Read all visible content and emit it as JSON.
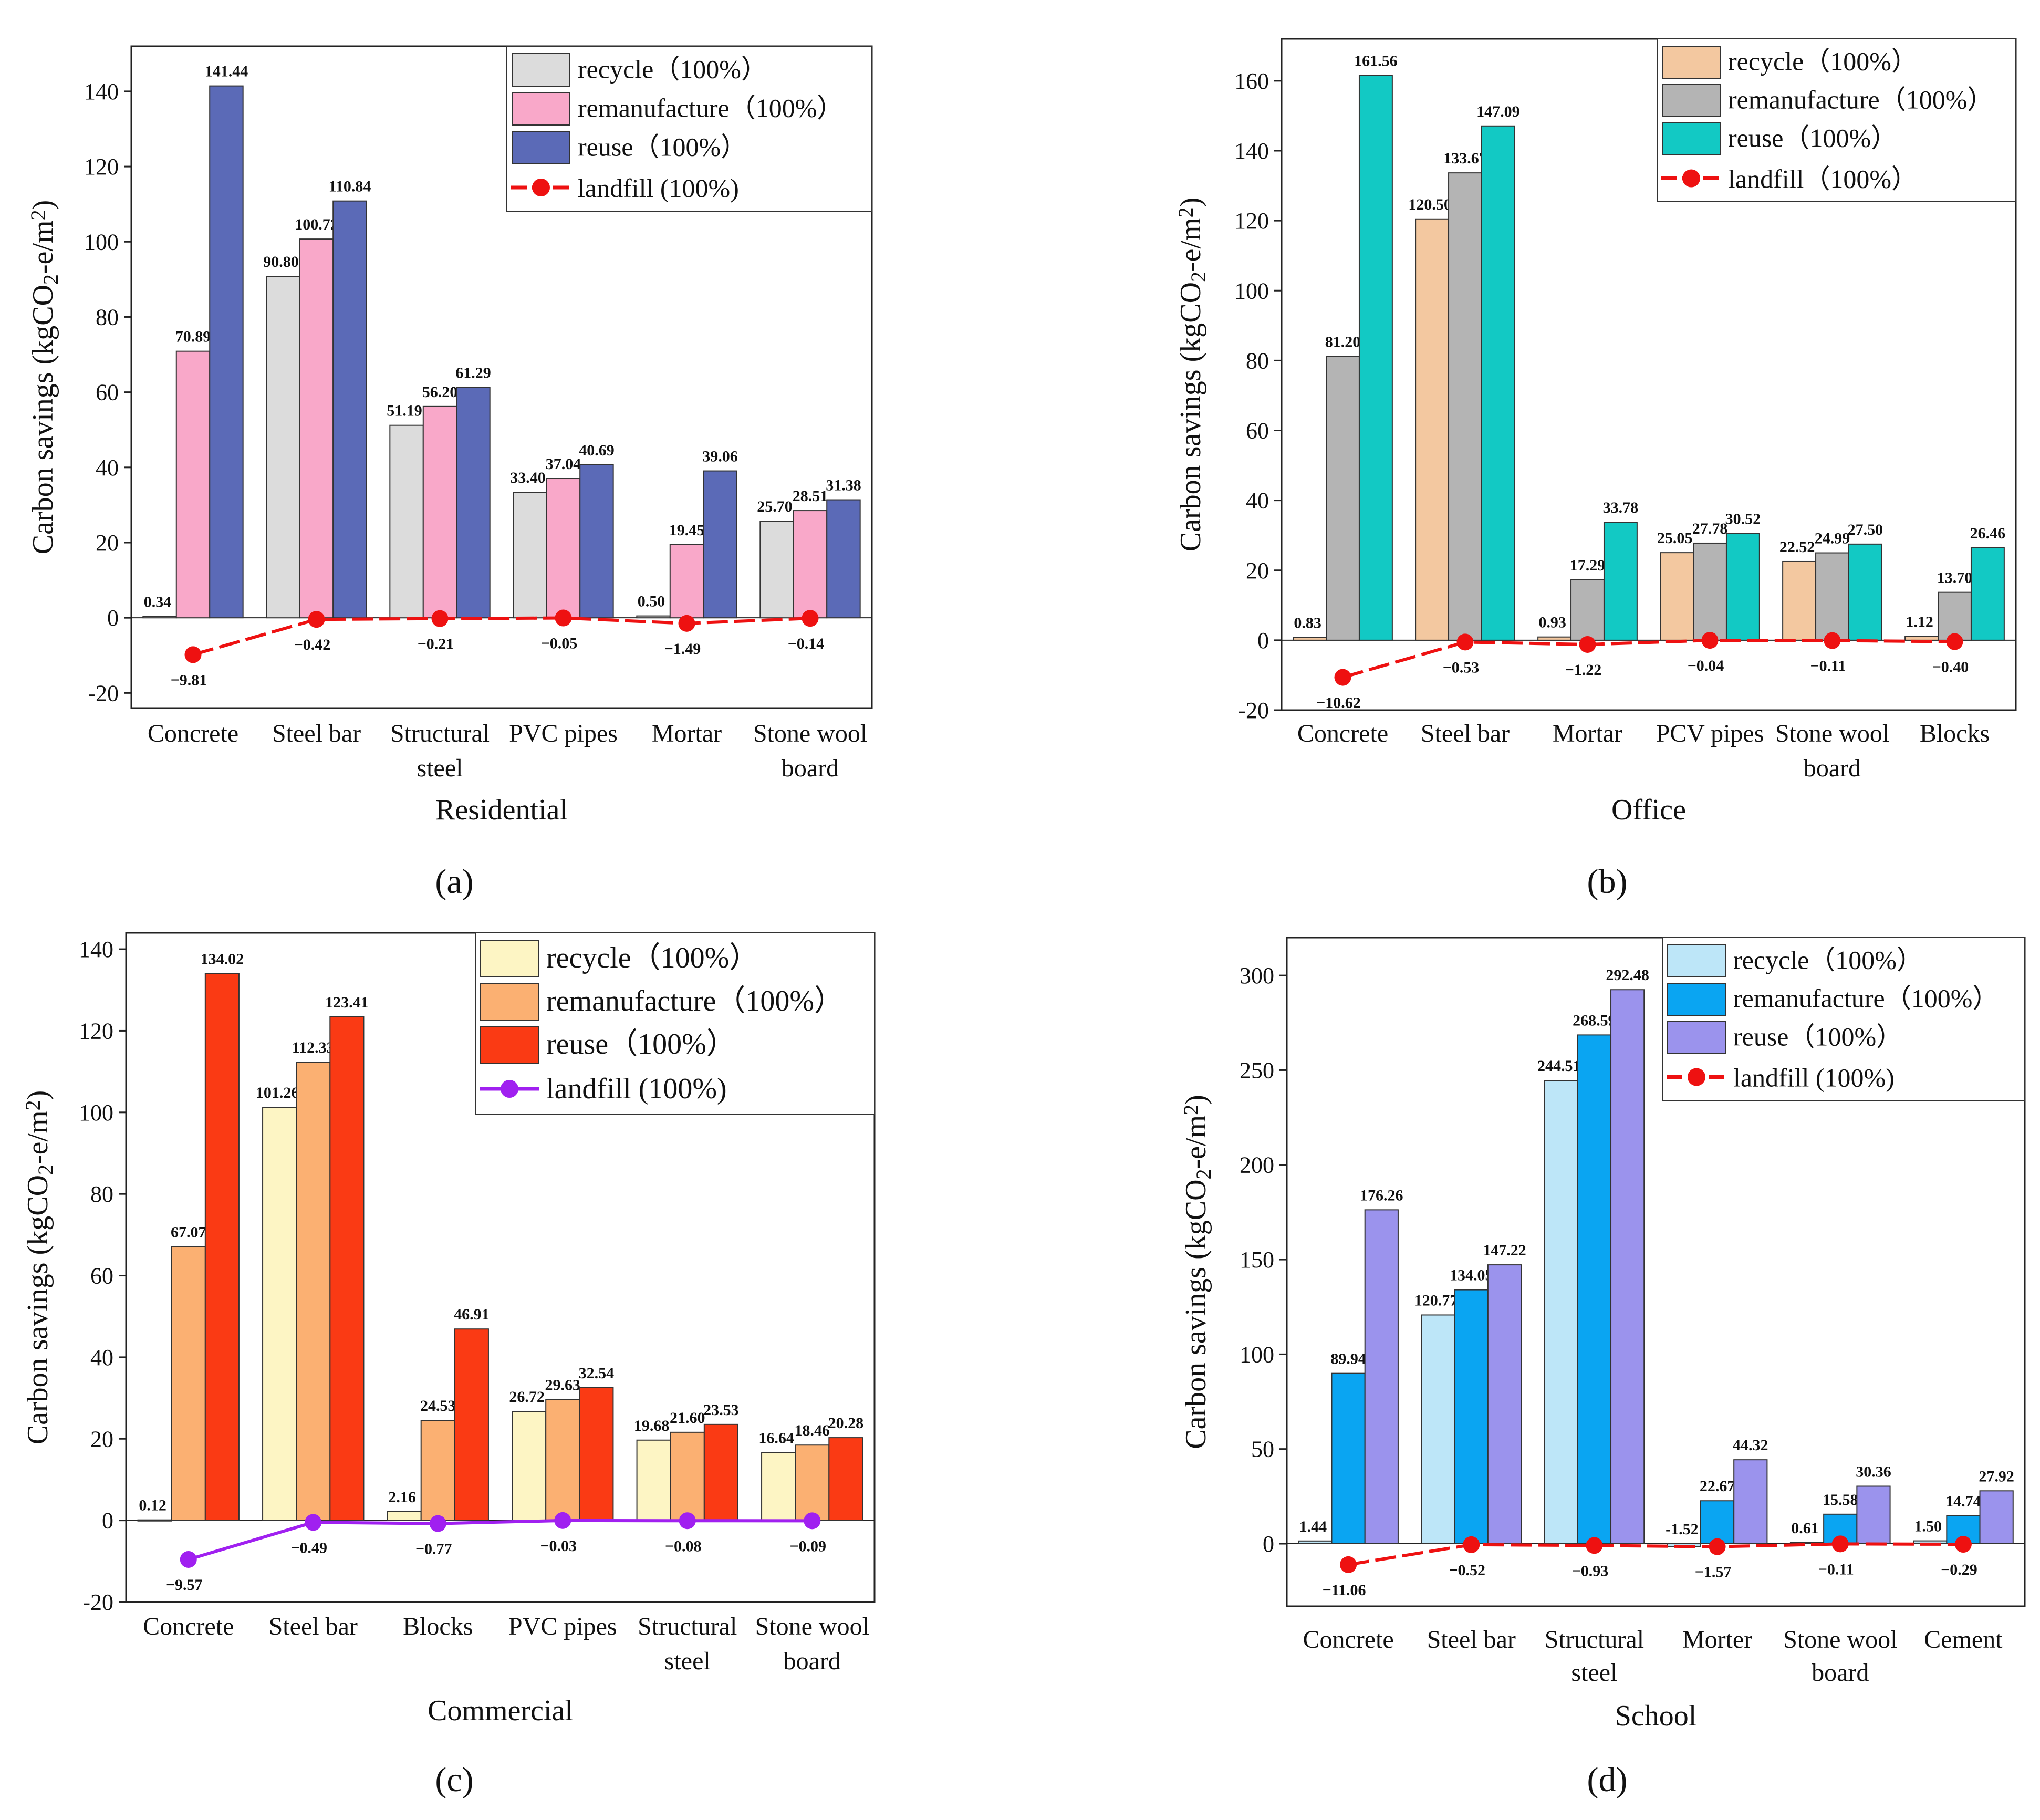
{
  "ylabel_prefix": "Carbon savings  (kgCO",
  "ylabel_sub2": "2",
  "ylabel_mid": "-e/m",
  "ylabel_sup2": "2",
  "ylabel_suffix": ")",
  "chart_data": [
    {
      "type": "bar",
      "panel_label": "(a)",
      "title": "",
      "xlabel": "Residential",
      "ylabel": "Carbon savings (kgCO2-e/m2)",
      "ylim": [
        -24,
        152
      ],
      "yticks": [
        -20,
        0,
        20,
        40,
        60,
        80,
        100,
        120,
        140
      ],
      "categories": [
        [
          "Concrete"
        ],
        [
          "Steel bar"
        ],
        [
          "Structural",
          "steel"
        ],
        [
          "PVC pipes"
        ],
        [
          "Mortar"
        ],
        [
          "Stone wool",
          "board"
        ]
      ],
      "series": [
        {
          "name": "recycle（100%）",
          "color": "#dcdcdc",
          "values": [
            0.34,
            90.8,
            51.19,
            33.4,
            0.5,
            25.7
          ],
          "labels": [
            "0.34",
            "90.80",
            "51.19",
            "33.40",
            "0.50",
            "25.70"
          ]
        },
        {
          "name": "remanufacture（100%）",
          "color": "#f9a8c9",
          "values": [
            70.89,
            100.72,
            56.2,
            37.04,
            19.45,
            28.51
          ],
          "labels": [
            "70.89",
            "100.72",
            "56.20",
            "37.04",
            "19.45",
            "28.51"
          ]
        },
        {
          "name": "reuse（100%）",
          "color": "#5b6ab7",
          "values": [
            141.44,
            110.84,
            61.29,
            40.69,
            39.06,
            31.38
          ],
          "labels": [
            "141.44",
            "110.84",
            "61.29",
            "40.69",
            "39.06",
            "31.38"
          ]
        }
      ],
      "line": {
        "name": "landfill (100%)",
        "color": "#ee1111",
        "dash": true,
        "values": [
          -9.81,
          -0.42,
          -0.21,
          -0.05,
          -1.49,
          -0.14
        ],
        "labels": [
          "−9.81",
          "−0.42",
          "−0.21",
          "−0.05",
          "−1.49",
          "−0.14"
        ]
      },
      "legend": "top-right"
    },
    {
      "type": "bar",
      "panel_label": "(b)",
      "title": "",
      "xlabel": "Office",
      "ylabel": "Carbon savings (kgCO2-e/m2)",
      "ylim": [
        -20,
        172
      ],
      "yticks": [
        -20,
        0,
        20,
        40,
        60,
        80,
        100,
        120,
        140,
        160
      ],
      "categories": [
        [
          "Concrete"
        ],
        [
          "Steel bar"
        ],
        [
          "Mortar"
        ],
        [
          "PCV pipes"
        ],
        [
          "Stone wool",
          "board"
        ],
        [
          "Blocks"
        ]
      ],
      "series": [
        {
          "name": "recycle（100%）",
          "color": "#f3c8a0",
          "values": [
            0.83,
            120.5,
            0.93,
            25.05,
            22.52,
            1.12
          ],
          "labels": [
            "0.83",
            "120.50",
            "0.93",
            "25.05",
            "22.52",
            "1.12"
          ]
        },
        {
          "name": "remanufacture（100%）",
          "color": "#b4b4b4",
          "values": [
            81.2,
            133.67,
            17.29,
            27.78,
            24.99,
            13.7
          ],
          "labels": [
            "81.20",
            "133.67",
            "17.29",
            "27.78",
            "24.99",
            "13.70"
          ]
        },
        {
          "name": "reuse（100%）",
          "color": "#12c9c4",
          "values": [
            161.56,
            147.09,
            33.78,
            30.52,
            27.5,
            26.46
          ],
          "labels": [
            "161.56",
            "147.09",
            "33.78",
            "30.52",
            "27.50",
            "26.46"
          ]
        }
      ],
      "line": {
        "name": "landfill（100%）",
        "color": "#ee1111",
        "dash": true,
        "values": [
          -10.62,
          -0.53,
          -1.22,
          -0.04,
          -0.11,
          -0.4
        ],
        "labels": [
          "−10.62",
          "−0.53",
          "−1.22",
          "−0.04",
          "−0.11",
          "−0.40"
        ]
      },
      "legend": "top-right"
    },
    {
      "type": "bar",
      "panel_label": "(c)",
      "title": "",
      "xlabel": "Commercial",
      "ylabel": "Carbon savings (kgCO2-e/m2)",
      "ylim": [
        -20,
        144
      ],
      "yticks": [
        -20,
        0,
        20,
        40,
        60,
        80,
        100,
        120,
        140
      ],
      "categories": [
        [
          "Concrete"
        ],
        [
          "Steel bar"
        ],
        [
          "Blocks"
        ],
        [
          "PVC pipes"
        ],
        [
          "Structural",
          "steel"
        ],
        [
          "Stone wool",
          "board"
        ]
      ],
      "series": [
        {
          "name": "recycle（100%）",
          "color": "#fdf5c4",
          "values": [
            0.12,
            101.26,
            2.16,
            26.72,
            19.68,
            16.64
          ],
          "labels": [
            "0.12",
            "101.26",
            "2.16",
            "26.72",
            "19.68",
            "16.64"
          ]
        },
        {
          "name": "remanufacture（100%）",
          "color": "#fbb072",
          "values": [
            67.07,
            112.33,
            24.53,
            29.63,
            21.6,
            18.46
          ],
          "labels": [
            "67.07",
            "112.33",
            "24.53",
            "29.63",
            "21.60",
            "18.46"
          ]
        },
        {
          "name": "reuse（100%）",
          "color": "#fa3a14",
          "values": [
            134.02,
            123.41,
            46.91,
            32.54,
            23.53,
            20.28
          ],
          "labels": [
            "134.02",
            "123.41",
            "46.91",
            "32.54",
            "23.53",
            "20.28"
          ]
        }
      ],
      "line": {
        "name": "landfill (100%)",
        "color": "#a020f0",
        "dash": false,
        "values": [
          -9.57,
          -0.49,
          -0.77,
          -0.03,
          -0.08,
          -0.09
        ],
        "labels": [
          "−9.57",
          "−0.49",
          "−0.77",
          "−0.03",
          "−0.08",
          "−0.09"
        ]
      },
      "legend": "top-right"
    },
    {
      "type": "bar",
      "panel_label": "(d)",
      "title": "",
      "xlabel": "School",
      "ylabel": "Carbon savings (kgCO2-e/m2)",
      "ylim": [
        -33,
        320
      ],
      "yticks": [
        0,
        50,
        100,
        150,
        200,
        250,
        300
      ],
      "categories": [
        [
          "Concrete"
        ],
        [
          "Steel bar"
        ],
        [
          "Structural",
          "steel"
        ],
        [
          "Morter"
        ],
        [
          "Stone wool",
          "board"
        ],
        [
          "Cement"
        ]
      ],
      "series": [
        {
          "name": "recycle（100%）",
          "color": "#bde6f8",
          "values": [
            1.44,
            120.77,
            244.51,
            -1.52,
            0.61,
            1.5
          ],
          "labels": [
            "1.44",
            "120.77",
            "244.51",
            "-1.52",
            "0.61",
            "1.50"
          ]
        },
        {
          "name": "remanufacture（100%）",
          "color": "#0aa5f2",
          "values": [
            89.94,
            134.05,
            268.59,
            22.67,
            15.58,
            14.74
          ],
          "labels": [
            "89.94",
            "134.05",
            "268.59",
            "22.67",
            "15.58",
            "14.74"
          ]
        },
        {
          "name": "reuse（100%）",
          "color": "#9b93ed",
          "values": [
            176.26,
            147.22,
            292.48,
            44.32,
            30.36,
            27.92
          ],
          "labels": [
            "176.26",
            "147.22",
            "292.48",
            "44.32",
            "30.36",
            "27.92"
          ]
        }
      ],
      "line": {
        "name": "landfill (100%)",
        "color": "#ee1111",
        "dash": true,
        "values": [
          -11.06,
          -0.52,
          -0.93,
          -1.57,
          -0.11,
          -0.29
        ],
        "labels": [
          "−11.06",
          "−0.52",
          "−0.93",
          "−1.57",
          "−0.11",
          "−0.29"
        ]
      },
      "legend": "top-right"
    }
  ]
}
